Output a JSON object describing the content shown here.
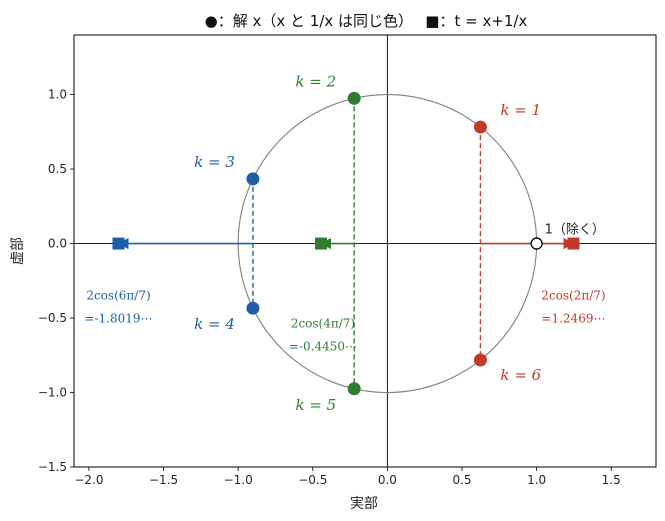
{
  "chart_data": {
    "type": "scatter",
    "title": "●：解 x（x と 1/x は同じ色）　 ■：t = x+1/x",
    "xlabel": "実部",
    "ylabel": "虚部",
    "xlim": [
      -2.1,
      1.8
    ],
    "ylim": [
      -1.5,
      1.4
    ],
    "xticks": [
      -2.0,
      -1.5,
      -1.0,
      -0.5,
      0.0,
      0.5,
      1.0,
      1.5
    ],
    "yticks": [
      -1.5,
      -1.0,
      -0.5,
      0.0,
      0.5,
      1.0
    ],
    "xtick_labels": [
      "−2.0",
      "−1.5",
      "−1.0",
      "−0.5",
      "0.0",
      "0.5",
      "1.0",
      "1.5"
    ],
    "ytick_labels": [
      "−1.5",
      "−1.0",
      "−0.5",
      "0.0",
      "0.5",
      "1.0"
    ],
    "unit_circle": {
      "center": [
        0,
        0
      ],
      "radius": 1,
      "color": "#808080"
    },
    "roots": [
      {
        "k": "k = 1",
        "x": 0.6235,
        "y": 0.7818,
        "color": "#c0392b"
      },
      {
        "k": "k = 6",
        "x": 0.6235,
        "y": -0.7818,
        "color": "#c0392b"
      },
      {
        "k": "k = 2",
        "x": -0.2225,
        "y": 0.9749,
        "color": "#2e7d32"
      },
      {
        "k": "k = 5",
        "x": -0.2225,
        "y": -0.9749,
        "color": "#2e7d32"
      },
      {
        "k": "k = 3",
        "x": -0.901,
        "y": 0.4339,
        "color": "#1f5fa8"
      },
      {
        "k": "k = 4",
        "x": -0.901,
        "y": -0.4339,
        "color": "#1f5fa8"
      }
    ],
    "excluded_point": {
      "x": 1,
      "y": 0,
      "label": "1（除く）"
    },
    "t_values": [
      {
        "x": 1.2469,
        "y": 0,
        "color": "#c0392b",
        "from_x": 0.6235,
        "formula": "2cos(2π/7)",
        "value": "=1.2469⋯"
      },
      {
        "x": -0.445,
        "y": 0,
        "color": "#2e7d32",
        "from_x": -0.2225,
        "formula": "2cos(4π/7)",
        "value": "=-0.4450⋯"
      },
      {
        "x": -1.8019,
        "y": 0,
        "color": "#1f5fa8",
        "from_x": -0.901,
        "formula": "2cos(6π/7)",
        "value": "=-1.8019⋯"
      }
    ]
  }
}
